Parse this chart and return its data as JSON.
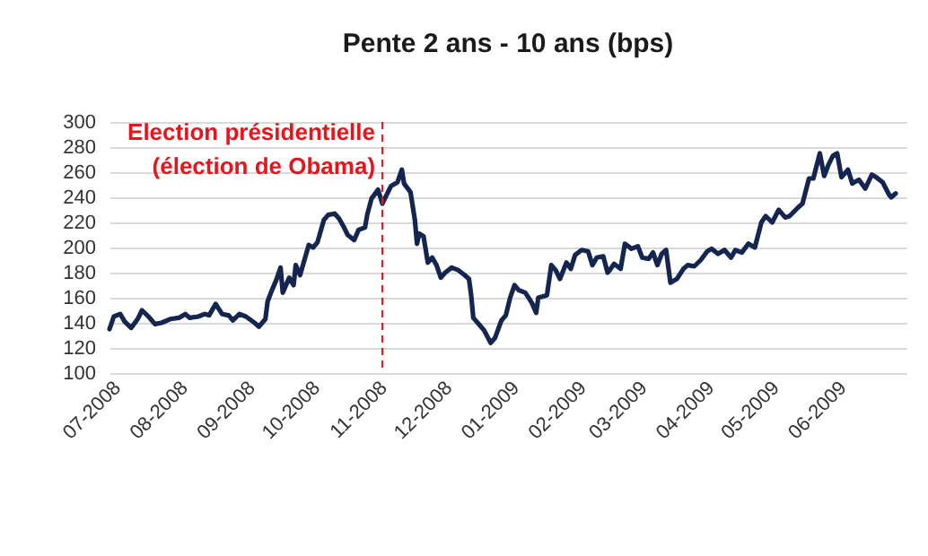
{
  "chart_data": {
    "type": "line",
    "title": "Pente 2 ans - 10 ans (bps)",
    "x": [
      "2008-07-01",
      "2008-07-03",
      "2008-07-06",
      "2008-07-08",
      "2008-07-11",
      "2008-07-14",
      "2008-07-16",
      "2008-07-19",
      "2008-07-22",
      "2008-07-25",
      "2008-07-29",
      "2008-08-02",
      "2008-08-05",
      "2008-08-07",
      "2008-08-11",
      "2008-08-14",
      "2008-08-16",
      "2008-08-19",
      "2008-08-22",
      "2008-08-25",
      "2008-08-27",
      "2008-08-30",
      "2008-09-02",
      "2008-09-06",
      "2008-09-08",
      "2008-09-11",
      "2008-09-12",
      "2008-09-14",
      "2008-09-16",
      "2008-09-18",
      "2008-09-19",
      "2008-09-22",
      "2008-09-24",
      "2008-09-25",
      "2008-09-27",
      "2008-09-29",
      "2008-10-01",
      "2008-10-03",
      "2008-10-05",
      "2008-10-08",
      "2008-10-10",
      "2008-10-13",
      "2008-10-15",
      "2008-10-17",
      "2008-10-19",
      "2008-10-22",
      "2008-10-24",
      "2008-10-27",
      "2008-10-28",
      "2008-10-30",
      "2008-11-02",
      "2008-11-04",
      "2008-11-06",
      "2008-11-08",
      "2008-11-09",
      "2008-11-11",
      "2008-11-13",
      "2008-11-14",
      "2008-11-17",
      "2008-11-19",
      "2008-11-20",
      "2008-11-21",
      "2008-11-23",
      "2008-11-25",
      "2008-11-27",
      "2008-11-29",
      "2008-12-01",
      "2008-12-03",
      "2008-12-06",
      "2008-12-09",
      "2008-12-12",
      "2008-12-14",
      "2008-12-15",
      "2008-12-16",
      "2008-12-19",
      "2008-12-21",
      "2008-12-24",
      "2008-12-26",
      "2008-12-29",
      "2008-12-31",
      "2009-01-02",
      "2009-01-04",
      "2009-01-06",
      "2009-01-09",
      "2009-01-12",
      "2009-01-14",
      "2009-01-15",
      "2009-01-19",
      "2009-01-21",
      "2009-01-23",
      "2009-01-25",
      "2009-01-28",
      "2009-01-30",
      "2009-02-01",
      "2009-02-04",
      "2009-02-07",
      "2009-02-09",
      "2009-02-11",
      "2009-02-14",
      "2009-02-16",
      "2009-02-17",
      "2009-02-19",
      "2009-02-22",
      "2009-02-24",
      "2009-02-27",
      "2009-03-02",
      "2009-03-04",
      "2009-03-07",
      "2009-03-09",
      "2009-03-11",
      "2009-03-13",
      "2009-03-15",
      "2009-03-17",
      "2009-03-20",
      "2009-03-23",
      "2009-03-25",
      "2009-03-28",
      "2009-03-31",
      "2009-04-03",
      "2009-04-05",
      "2009-04-08",
      "2009-04-11",
      "2009-04-14",
      "2009-04-16",
      "2009-04-19",
      "2009-04-22",
      "2009-04-25",
      "2009-04-28",
      "2009-04-30",
      "2009-05-03",
      "2009-05-06",
      "2009-05-09",
      "2009-05-11",
      "2009-05-15",
      "2009-05-17",
      "2009-05-20",
      "2009-05-22",
      "2009-05-25",
      "2009-05-27",
      "2009-05-29",
      "2009-05-31",
      "2009-06-02",
      "2009-06-04",
      "2009-06-07",
      "2009-06-09",
      "2009-06-12",
      "2009-06-15",
      "2009-06-18",
      "2009-06-20",
      "2009-06-23",
      "2009-06-26",
      "2009-06-27",
      "2009-06-29"
    ],
    "series": [
      {
        "color": "#14254f",
        "values": [
          135,
          145,
          147,
          141,
          136,
          143,
          150,
          145,
          139,
          140,
          143,
          144,
          147,
          144,
          145,
          147,
          146,
          155,
          147,
          146,
          142,
          147,
          145,
          140,
          137,
          143,
          157,
          166,
          174,
          184,
          164,
          176,
          170,
          186,
          178,
          190,
          202,
          200,
          204,
          222,
          226,
          227,
          223,
          217,
          210,
          206,
          214,
          216,
          226,
          239,
          246,
          235,
          242,
          249,
          250,
          252,
          262,
          251,
          244,
          222,
          203,
          211,
          209,
          188,
          192,
          186,
          176,
          180,
          184,
          182,
          178,
          175,
          162,
          144,
          138,
          134,
          124,
          128,
          142,
          146,
          160,
          170,
          166,
          164,
          156,
          148,
          160,
          162,
          186,
          182,
          175,
          188,
          183,
          194,
          198,
          197,
          186,
          192,
          193,
          180,
          182,
          187,
          183,
          203,
          199,
          201,
          192,
          191,
          196,
          186,
          195,
          198,
          172,
          175,
          183,
          186,
          185,
          190,
          197,
          199,
          195,
          198,
          192,
          198,
          196,
          203,
          200,
          220,
          225,
          220,
          230,
          224,
          225,
          232,
          235,
          255,
          255,
          275,
          257,
          266,
          273,
          275,
          256,
          262,
          251,
          254,
          247,
          258,
          256,
          252,
          242,
          240,
          243
        ]
      }
    ],
    "xlim": [
      "2008-07-01",
      "2009-07-04"
    ],
    "xticks": [
      {
        "value": "2008-07-01",
        "label": "07-2008"
      },
      {
        "value": "2008-08-01",
        "label": "08-2008"
      },
      {
        "value": "2008-09-01",
        "label": "09-2008"
      },
      {
        "value": "2008-10-01",
        "label": "10-2008"
      },
      {
        "value": "2008-11-01",
        "label": "11-2008"
      },
      {
        "value": "2008-12-01",
        "label": "12-2008"
      },
      {
        "value": "2009-01-01",
        "label": "01-2009"
      },
      {
        "value": "2009-02-01",
        "label": "02-2009"
      },
      {
        "value": "2009-03-01",
        "label": "03-2009"
      },
      {
        "value": "2009-04-01",
        "label": "04-2009"
      },
      {
        "value": "2009-05-01",
        "label": "05-2009"
      },
      {
        "value": "2009-06-01",
        "label": "06-2009"
      }
    ],
    "ylim": [
      100,
      300
    ],
    "yticks": [
      100,
      120,
      140,
      160,
      180,
      200,
      220,
      240,
      260,
      280,
      300
    ],
    "grid": "y",
    "ref_lines": [
      {
        "axis": "x",
        "value": "2008-11-04",
        "label": "Election présidentielle\n(élection de Obama)",
        "color": "#e8141b",
        "line_style": "dashed"
      }
    ]
  }
}
